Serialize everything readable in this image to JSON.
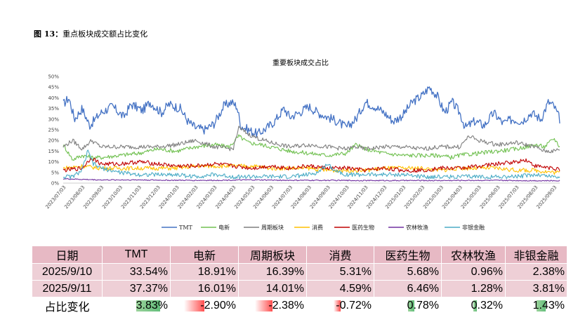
{
  "figure": {
    "label": "图 13：",
    "caption": "重点板块成交额占比变化"
  },
  "chart_data": {
    "type": "line",
    "title": "重要板块成交占比",
    "y_ticks": [
      "50%",
      "45%",
      "40%",
      "35%",
      "30%",
      "25%",
      "20%",
      "15%",
      "10%",
      "5%",
      "0%"
    ],
    "ylim": [
      0,
      50
    ],
    "x_ticks": [
      "2023/07/03",
      "2023/08/03",
      "2023/09/03",
      "2023/10/03",
      "2023/11/03",
      "2023/12/03",
      "2024/01/03",
      "2024/02/03",
      "2024/03/03",
      "2024/04/03",
      "2024/05/03",
      "2024/06/03",
      "2024/07/03",
      "2024/08/03",
      "2024/09/03",
      "2024/10/03",
      "2024/11/03",
      "2024/12/03",
      "2025/01/03",
      "2025/02/03",
      "2025/03/03",
      "2025/04/03",
      "2025/05/03",
      "2025/06/03",
      "2025/07/03",
      "2025/08/03",
      "2025/09/03"
    ],
    "series": [
      {
        "name": "TMT",
        "color": "#4472c4",
        "anchors": [
          [
            0,
            37
          ],
          [
            0.3,
            40
          ],
          [
            0.6,
            30
          ],
          [
            1,
            35
          ],
          [
            1.4,
            27
          ],
          [
            2,
            33
          ],
          [
            2.6,
            36
          ],
          [
            3.2,
            31
          ],
          [
            3.6,
            37
          ],
          [
            4.2,
            34
          ],
          [
            4.6,
            38
          ],
          [
            5.2,
            33
          ],
          [
            5.6,
            37
          ],
          [
            6.2,
            35
          ],
          [
            6.6,
            29
          ],
          [
            7,
            26
          ],
          [
            7.5,
            25
          ],
          [
            8,
            28
          ],
          [
            8.5,
            36
          ],
          [
            8.9,
            38
          ],
          [
            9.2,
            36
          ],
          [
            9.4,
            27
          ],
          [
            9.8,
            25
          ],
          [
            10.3,
            23
          ],
          [
            10.8,
            26
          ],
          [
            11.2,
            29
          ],
          [
            11.7,
            35
          ],
          [
            12,
            31
          ],
          [
            12.5,
            33
          ],
          [
            13,
            36
          ],
          [
            13.5,
            33
          ],
          [
            14,
            31
          ],
          [
            14.5,
            29
          ],
          [
            15,
            26
          ],
          [
            15.5,
            30
          ],
          [
            16,
            38
          ],
          [
            16.5,
            36
          ],
          [
            17,
            33
          ],
          [
            17.5,
            29
          ],
          [
            18,
            32
          ],
          [
            18.5,
            38
          ],
          [
            19,
            41
          ],
          [
            19.4,
            45
          ],
          [
            19.8,
            41
          ],
          [
            20.2,
            33
          ],
          [
            20.6,
            38
          ],
          [
            21,
            33
          ],
          [
            21.3,
            26
          ],
          [
            21.8,
            29
          ],
          [
            22.3,
            27
          ],
          [
            22.8,
            33
          ],
          [
            23.3,
            28
          ],
          [
            23.8,
            30
          ],
          [
            24.3,
            29
          ],
          [
            24.8,
            33
          ],
          [
            25.3,
            30
          ],
          [
            25.7,
            38
          ],
          [
            26,
            36
          ],
          [
            26.3,
            30
          ]
        ]
      },
      {
        "name": "电新",
        "color": "#70c050",
        "anchors": [
          [
            0,
            18
          ],
          [
            0.5,
            11
          ],
          [
            1,
            13
          ],
          [
            1.5,
            12
          ],
          [
            2,
            12
          ],
          [
            3,
            13
          ],
          [
            4,
            14
          ],
          [
            5,
            16
          ],
          [
            6,
            15
          ],
          [
            7,
            17
          ],
          [
            8,
            18
          ],
          [
            8.8,
            17
          ],
          [
            9.3,
            22
          ],
          [
            9.8,
            19
          ],
          [
            10.5,
            18
          ],
          [
            11,
            17
          ],
          [
            12,
            15
          ],
          [
            13,
            14
          ],
          [
            14,
            13
          ],
          [
            15,
            14
          ],
          [
            15.5,
            18
          ],
          [
            16,
            16
          ],
          [
            17,
            14
          ],
          [
            18,
            13
          ],
          [
            19,
            13
          ],
          [
            20,
            13
          ],
          [
            20.5,
            12
          ],
          [
            21,
            13
          ],
          [
            22,
            14
          ],
          [
            23,
            15
          ],
          [
            24,
            16
          ],
          [
            25,
            18
          ],
          [
            25.5,
            17
          ],
          [
            26,
            21
          ],
          [
            26.3,
            17
          ]
        ]
      },
      {
        "name": "周期板块",
        "color": "#7f7f7f",
        "anchors": [
          [
            0,
            17
          ],
          [
            0.5,
            20
          ],
          [
            1,
            16
          ],
          [
            1.5,
            20
          ],
          [
            2,
            17
          ],
          [
            3,
            17
          ],
          [
            4,
            17
          ],
          [
            5,
            17
          ],
          [
            6,
            18
          ],
          [
            7,
            20
          ],
          [
            8,
            17
          ],
          [
            9,
            16
          ],
          [
            9.3,
            26
          ],
          [
            9.8,
            23
          ],
          [
            10.3,
            21
          ],
          [
            11,
            19
          ],
          [
            12,
            17
          ],
          [
            13,
            18
          ],
          [
            14,
            17
          ],
          [
            15,
            16
          ],
          [
            15.5,
            17
          ],
          [
            16,
            16
          ],
          [
            17,
            17
          ],
          [
            18,
            17
          ],
          [
            19,
            16
          ],
          [
            20,
            17
          ],
          [
            21,
            17
          ],
          [
            21.5,
            22
          ],
          [
            22,
            20
          ],
          [
            23,
            18
          ],
          [
            24,
            19
          ],
          [
            25,
            17
          ],
          [
            25.5,
            15
          ],
          [
            26,
            15
          ],
          [
            26.3,
            16
          ]
        ]
      },
      {
        "name": "消费",
        "color": "#ffc000",
        "anchors": [
          [
            0,
            7
          ],
          [
            1,
            8
          ],
          [
            2,
            7
          ],
          [
            3,
            7
          ],
          [
            4,
            7
          ],
          [
            5,
            7
          ],
          [
            6,
            7
          ],
          [
            7,
            8
          ],
          [
            8,
            8
          ],
          [
            9,
            8
          ],
          [
            10,
            8
          ],
          [
            11,
            7
          ],
          [
            12,
            7
          ],
          [
            13,
            7
          ],
          [
            14,
            6
          ],
          [
            15,
            6
          ],
          [
            16,
            6
          ],
          [
            17,
            7
          ],
          [
            18,
            7
          ],
          [
            19,
            7
          ],
          [
            20,
            6
          ],
          [
            21,
            7
          ],
          [
            22,
            7
          ],
          [
            23,
            7
          ],
          [
            24,
            6
          ],
          [
            25,
            6
          ],
          [
            26,
            5
          ],
          [
            26.3,
            5
          ]
        ]
      },
      {
        "name": "医药生物",
        "color": "#c00000",
        "anchors": [
          [
            0,
            6
          ],
          [
            1,
            7
          ],
          [
            1.5,
            12
          ],
          [
            2,
            9
          ],
          [
            3,
            9
          ],
          [
            4,
            10
          ],
          [
            5,
            9
          ],
          [
            6,
            8
          ],
          [
            7,
            8
          ],
          [
            8,
            9
          ],
          [
            9,
            8
          ],
          [
            10,
            7
          ],
          [
            11,
            8
          ],
          [
            12,
            7
          ],
          [
            13,
            8
          ],
          [
            14,
            7
          ],
          [
            15,
            7
          ],
          [
            16,
            6
          ],
          [
            17,
            7
          ],
          [
            18,
            6
          ],
          [
            19,
            6
          ],
          [
            20,
            7
          ],
          [
            21,
            7
          ],
          [
            22,
            8
          ],
          [
            23,
            9
          ],
          [
            24,
            10
          ],
          [
            24.5,
            11
          ],
          [
            25,
            8
          ],
          [
            26,
            7
          ],
          [
            26.3,
            6
          ]
        ]
      },
      {
        "name": "农林牧渔",
        "color": "#7030a0",
        "anchors": [
          [
            0,
            2
          ],
          [
            2,
            1.5
          ],
          [
            4,
            1.5
          ],
          [
            6,
            1.3
          ],
          [
            8,
            1.3
          ],
          [
            10,
            1.5
          ],
          [
            12,
            1.3
          ],
          [
            14,
            1.3
          ],
          [
            16,
            1.2
          ],
          [
            18,
            1.2
          ],
          [
            20,
            1.2
          ],
          [
            22,
            1.3
          ],
          [
            24,
            1.2
          ],
          [
            26,
            1.1
          ],
          [
            26.3,
            1.2
          ]
        ]
      },
      {
        "name": "非银金融",
        "color": "#4bacc6",
        "anchors": [
          [
            0,
            3
          ],
          [
            0.5,
            3
          ],
          [
            1,
            6
          ],
          [
            1.3,
            15
          ],
          [
            1.6,
            9
          ],
          [
            2,
            7
          ],
          [
            3,
            5
          ],
          [
            4,
            4
          ],
          [
            5,
            4
          ],
          [
            6,
            4
          ],
          [
            7,
            3
          ],
          [
            8,
            4
          ],
          [
            9,
            3
          ],
          [
            10,
            3
          ],
          [
            11,
            3
          ],
          [
            12,
            3
          ],
          [
            13,
            4
          ],
          [
            13.5,
            5
          ],
          [
            14,
            9
          ],
          [
            14.4,
            6
          ],
          [
            15,
            4
          ],
          [
            16,
            4
          ],
          [
            17,
            4
          ],
          [
            18,
            4
          ],
          [
            19,
            3
          ],
          [
            20,
            3
          ],
          [
            21,
            3
          ],
          [
            22,
            3
          ],
          [
            23,
            3
          ],
          [
            24,
            3
          ],
          [
            25,
            4
          ],
          [
            26,
            3
          ],
          [
            26.3,
            3
          ]
        ]
      }
    ]
  },
  "table": {
    "headers": [
      "日期",
      "TMT",
      "电新",
      "周期板块",
      "消费",
      "医药生物",
      "农林牧渔",
      "非银金融"
    ],
    "rows": [
      [
        "2025/9/10",
        "33.54%",
        "18.91%",
        "16.39%",
        "5.31%",
        "5.68%",
        "0.96%",
        "2.38%"
      ],
      [
        "2025/9/11",
        "37.37%",
        "16.01%",
        "14.01%",
        "4.59%",
        "6.46%",
        "1.28%",
        "3.81%"
      ]
    ],
    "change_row": {
      "label": "占比变化",
      "values": [
        "3.83%",
        "-2.90%",
        "-2.38%",
        "-0.72%",
        "0.78%",
        "0.32%",
        "1.43%"
      ],
      "fractions": [
        0.35,
        0.3,
        0.26,
        0.1,
        0.1,
        0.06,
        0.16
      ]
    }
  }
}
